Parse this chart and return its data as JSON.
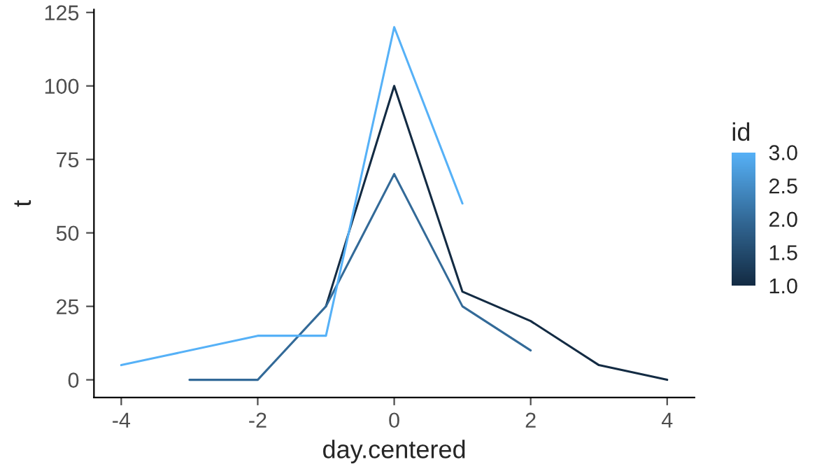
{
  "chart_data": {
    "type": "line",
    "xlabel": "day.centered",
    "ylabel": "t",
    "clabel": "id",
    "xlim": [
      -4.4,
      4.4
    ],
    "ylim": [
      -6,
      126
    ],
    "xticks": [
      -4,
      -2,
      0,
      2,
      4
    ],
    "yticks": [
      0,
      25,
      50,
      75,
      100,
      125
    ],
    "clim": [
      1.0,
      3.0
    ],
    "cticks": [
      {
        "value": 1.0,
        "label": "1.0"
      },
      {
        "value": 1.5,
        "label": "1.5"
      },
      {
        "value": 2.0,
        "label": "2.0"
      },
      {
        "value": 2.5,
        "label": "2.5"
      },
      {
        "value": 3.0,
        "label": "3.0"
      }
    ],
    "grid": false,
    "series": [
      {
        "color": "#132b43",
        "x": [
          -1,
          0,
          1,
          2,
          3,
          4
        ],
        "values": [
          25,
          100,
          30,
          20,
          5,
          0
        ]
      },
      {
        "color": "#336a98",
        "x": [
          -3,
          -2,
          -1,
          0,
          1,
          2
        ],
        "values": [
          0,
          0,
          25,
          70,
          25,
          10
        ]
      },
      {
        "color": "#56b1f7",
        "x": [
          -4,
          -2,
          -1,
          0,
          1
        ],
        "values": [
          5,
          15,
          15,
          120,
          60
        ]
      }
    ]
  }
}
